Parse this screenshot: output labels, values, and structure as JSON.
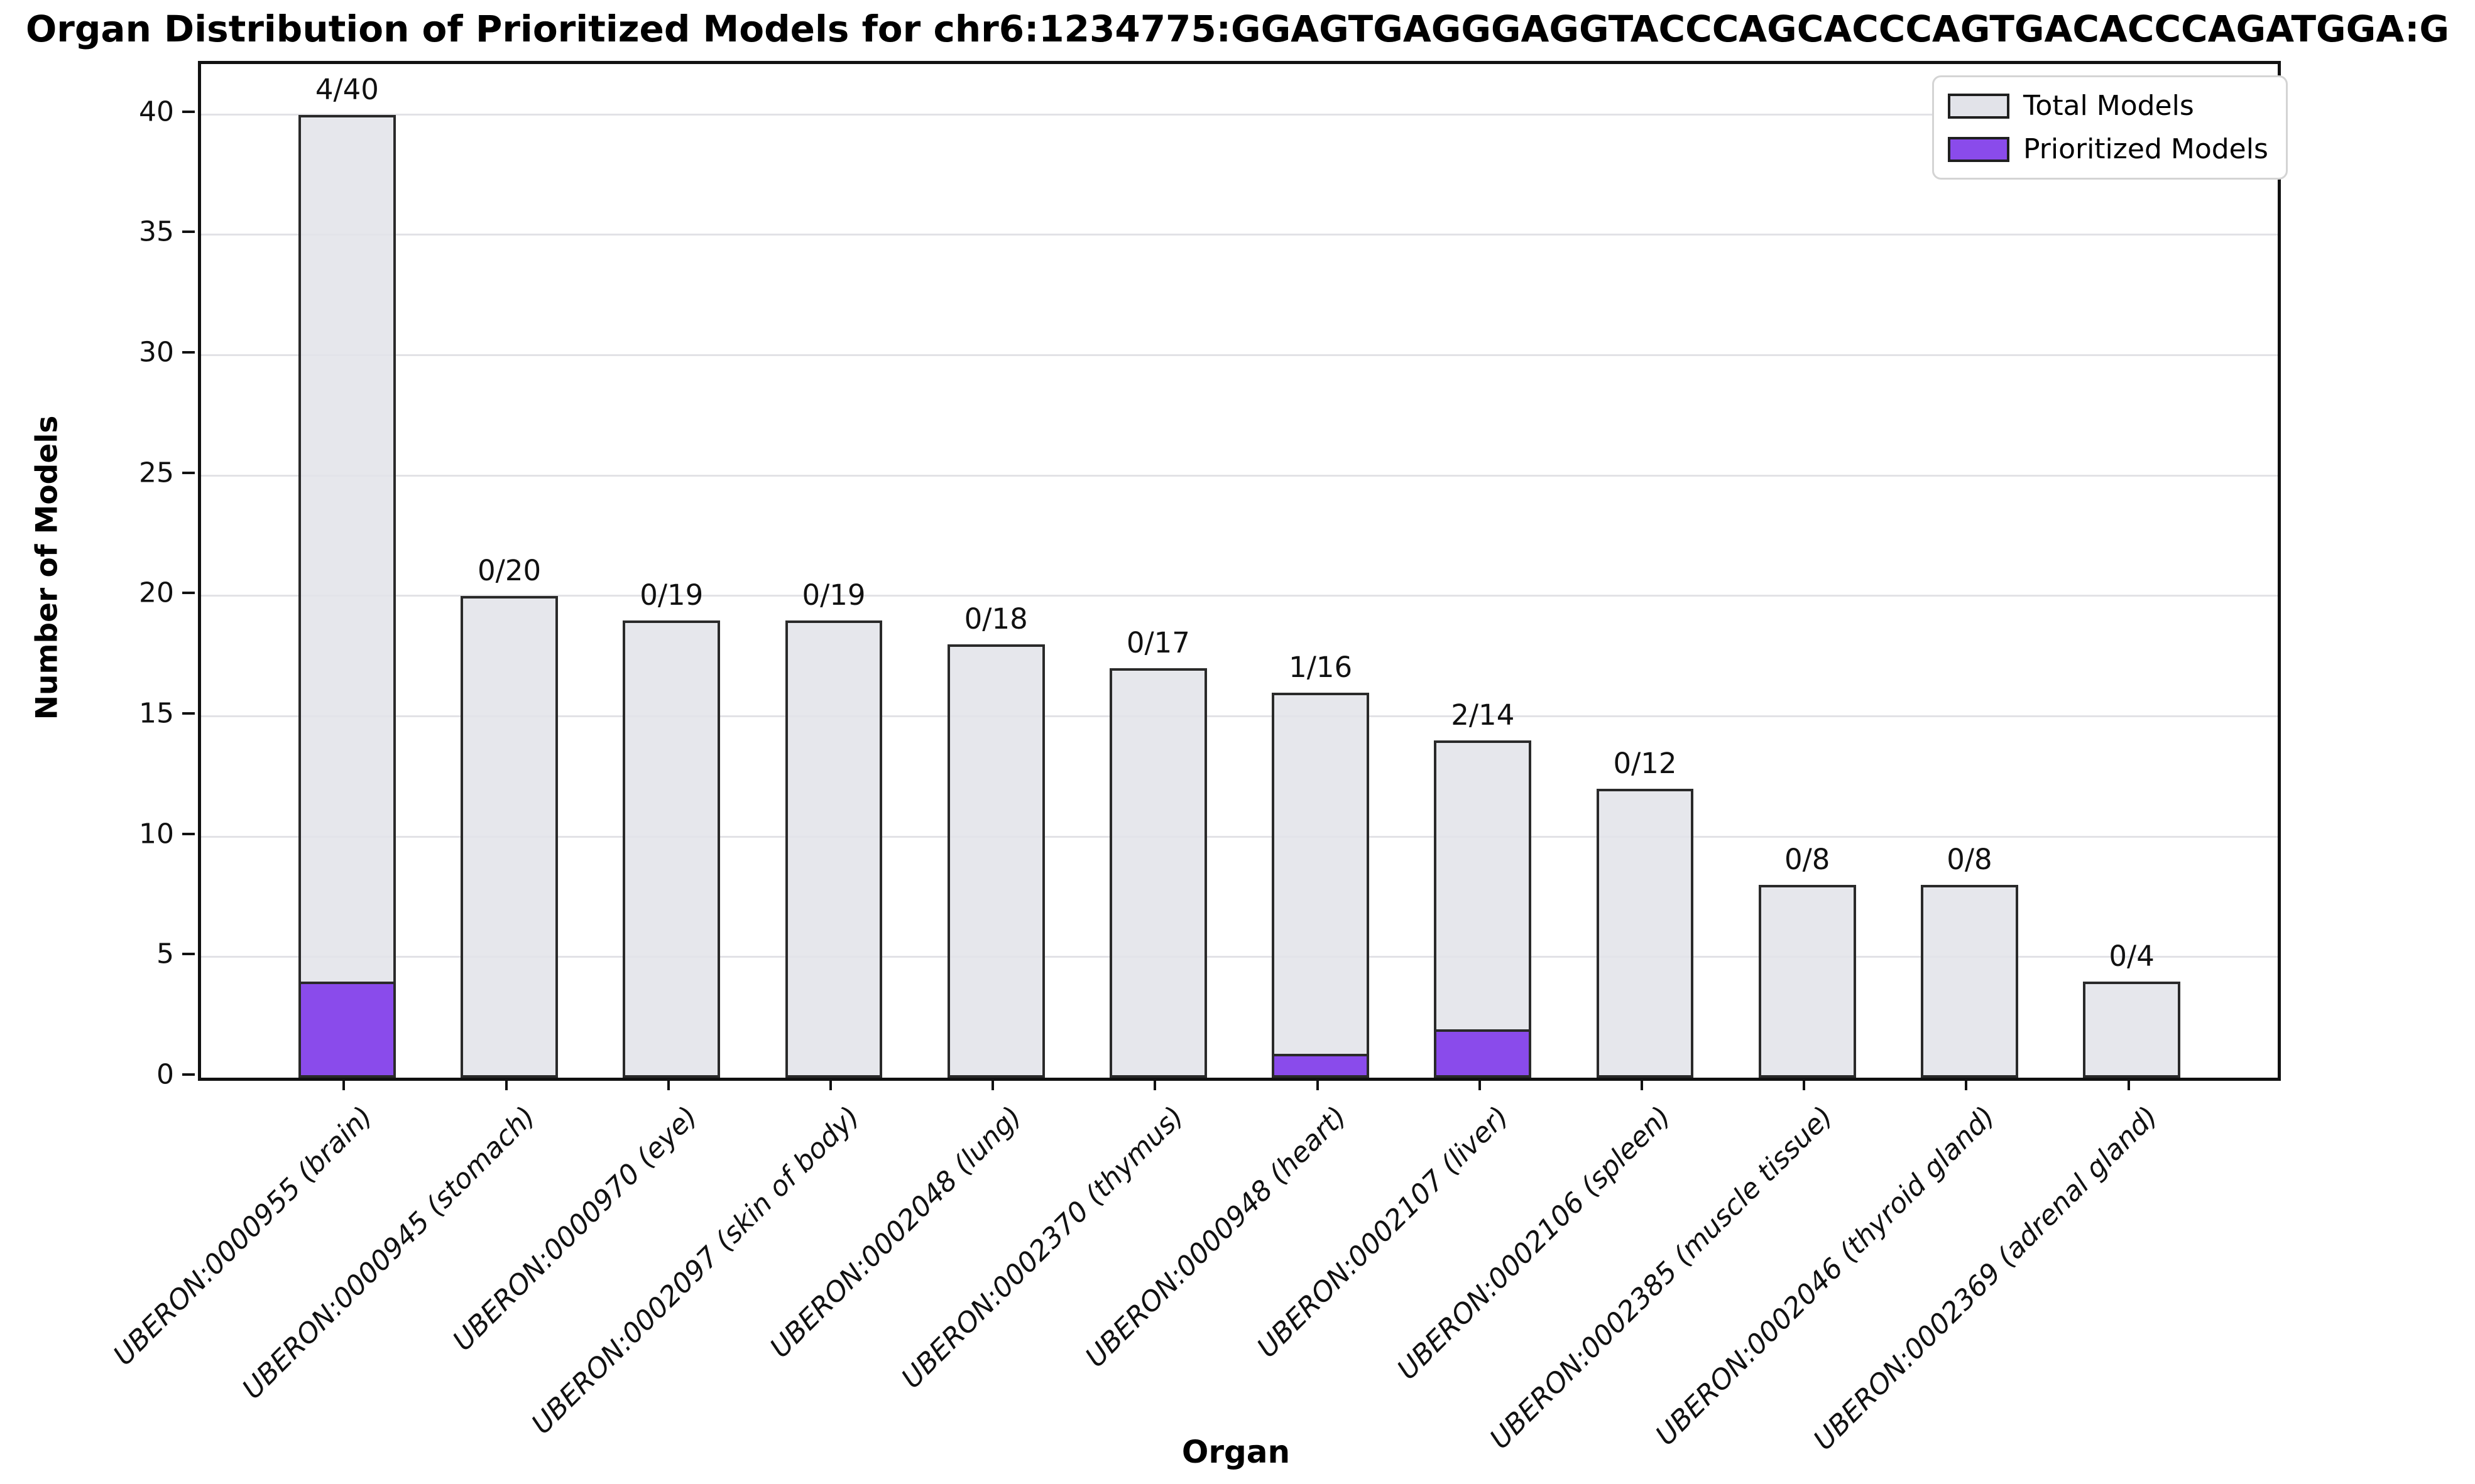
{
  "title": "Organ Distribution of Prioritized Models for chr6:1234775:GGAGTGAGGGAGGTACCCAGCACCCAGTGACACCCAGATGGA:G",
  "axes": {
    "x_label": "Organ",
    "y_label": "Number of Models"
  },
  "legend": {
    "items": [
      {
        "label": "Total Models",
        "color": "#e2e3e9"
      },
      {
        "label": "Prioritized Models",
        "color": "#8a4beb"
      }
    ]
  },
  "colors": {
    "total_bar_fill": "#e9eaee",
    "prioritized_bar_fill": "#8a4beb",
    "bar_edge": "#2a2a2a",
    "gridline": "#e2e2e6",
    "spine": "#111111"
  },
  "chart_data": {
    "type": "bar",
    "title": "Organ Distribution of Prioritized Models for chr6:1234775:GGAGTGAGGGAGGTACCCAGCACCCAGTGACACCCAGATGGA:G",
    "xlabel": "Organ",
    "ylabel": "Number of Models",
    "categories": [
      "UBERON:0000955 (brain)",
      "UBERON:0000945 (stomach)",
      "UBERON:0000970 (eye)",
      "UBERON:0002097 (skin of body)",
      "UBERON:0002048 (lung)",
      "UBERON:0002370 (thymus)",
      "UBERON:0000948 (heart)",
      "UBERON:0002107 (liver)",
      "UBERON:0002106 (spleen)",
      "UBERON:0002385 (muscle tissue)",
      "UBERON:0002046 (thyroid gland)",
      "UBERON:0002369 (adrenal gland)"
    ],
    "series": [
      {
        "name": "Total Models",
        "values": [
          40,
          20,
          19,
          19,
          18,
          17,
          16,
          14,
          12,
          8,
          8,
          4
        ]
      },
      {
        "name": "Prioritized Models",
        "values": [
          4,
          0,
          0,
          0,
          0,
          0,
          1,
          2,
          0,
          0,
          0,
          0
        ]
      }
    ],
    "bar_labels": [
      "4/40",
      "0/20",
      "0/19",
      "0/19",
      "0/18",
      "0/17",
      "1/16",
      "2/14",
      "0/12",
      "0/8",
      "0/8",
      "0/4"
    ],
    "yticks": [
      0,
      5,
      10,
      15,
      20,
      25,
      30,
      35,
      40
    ],
    "ylim": [
      0,
      42.1
    ],
    "grid": true,
    "legend_position": "upper right"
  }
}
